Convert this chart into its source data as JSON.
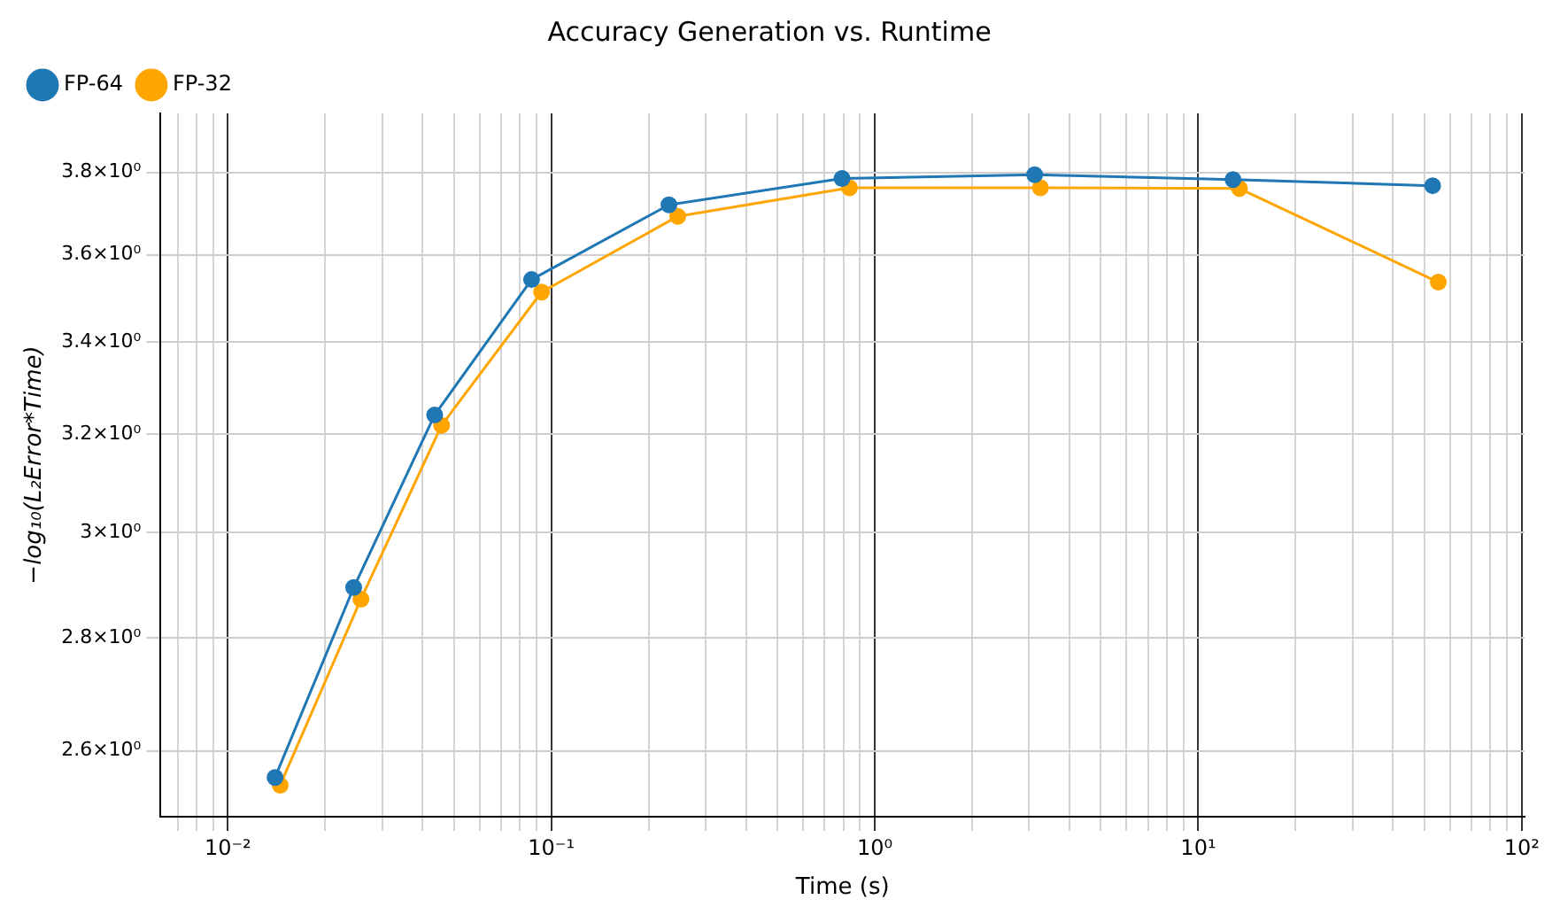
{
  "chart_data": {
    "type": "line",
    "title": "Accuracy Generation vs. Runtime",
    "xlabel": "Time (s)",
    "ylabel": "−log₁₀(L₂Error*Time)",
    "log": "xy",
    "grid": true,
    "legend": "top left",
    "marker": "circle",
    "line_style": "solid",
    "xlim": [
      0.0062,
      102
    ],
    "ylim": [
      2.49,
      3.95
    ],
    "xticks": [
      {
        "value": 0.007,
        "label": null
      },
      {
        "value": 0.008,
        "label": null
      },
      {
        "value": 0.009,
        "label": null
      },
      {
        "value": 0.01,
        "label": "10⁻²"
      },
      {
        "value": 0.02,
        "label": null
      },
      {
        "value": 0.03,
        "label": null
      },
      {
        "value": 0.04,
        "label": null
      },
      {
        "value": 0.05,
        "label": null
      },
      {
        "value": 0.06,
        "label": null
      },
      {
        "value": 0.07,
        "label": null
      },
      {
        "value": 0.08,
        "label": null
      },
      {
        "value": 0.09,
        "label": null
      },
      {
        "value": 0.1,
        "label": "10⁻¹"
      },
      {
        "value": 0.2,
        "label": null
      },
      {
        "value": 0.3,
        "label": null
      },
      {
        "value": 0.4,
        "label": null
      },
      {
        "value": 0.5,
        "label": null
      },
      {
        "value": 0.6,
        "label": null
      },
      {
        "value": 0.7,
        "label": null
      },
      {
        "value": 0.8,
        "label": null
      },
      {
        "value": 0.9,
        "label": null
      },
      {
        "value": 1,
        "label": "10⁰"
      },
      {
        "value": 2,
        "label": null
      },
      {
        "value": 3,
        "label": null
      },
      {
        "value": 4,
        "label": null
      },
      {
        "value": 5,
        "label": null
      },
      {
        "value": 6,
        "label": null
      },
      {
        "value": 7,
        "label": null
      },
      {
        "value": 8,
        "label": null
      },
      {
        "value": 9,
        "label": null
      },
      {
        "value": 10,
        "label": "10¹"
      },
      {
        "value": 20,
        "label": null
      },
      {
        "value": 30,
        "label": null
      },
      {
        "value": 40,
        "label": null
      },
      {
        "value": 50,
        "label": null
      },
      {
        "value": 60,
        "label": null
      },
      {
        "value": 70,
        "label": null
      },
      {
        "value": 80,
        "label": null
      },
      {
        "value": 90,
        "label": null
      },
      {
        "value": 100,
        "label": "10²"
      }
    ],
    "yticks": [
      {
        "value": 2.6,
        "label": "2.6×10⁰"
      },
      {
        "value": 2.8,
        "label": "2.8×10⁰"
      },
      {
        "value": 3,
        "label": "3×10⁰"
      },
      {
        "value": 3.2,
        "label": "3.2×10⁰"
      },
      {
        "value": 3.4,
        "label": "3.4×10⁰"
      },
      {
        "value": 3.6,
        "label": "3.6×10⁰"
      },
      {
        "value": 3.8,
        "label": "3.8×10⁰"
      }
    ],
    "series": [
      {
        "name": "FP-64",
        "color": "#1f77b4",
        "x": [
          0.014,
          0.0245,
          0.0436,
          0.0869,
          0.231,
          0.792,
          3.12,
          12.8,
          53.0
        ],
        "values": [
          2.555,
          2.894,
          3.241,
          3.542,
          3.72,
          3.785,
          3.794,
          3.782,
          3.767
        ]
      },
      {
        "name": "FP-32",
        "color": "#ffa500",
        "x": [
          0.01452,
          0.0258,
          0.0458,
          0.0933,
          0.246,
          0.835,
          3.25,
          13.4,
          55.2
        ],
        "values": [
          2.542,
          2.872,
          3.219,
          3.513,
          3.692,
          3.762,
          3.762,
          3.76,
          3.536
        ]
      }
    ]
  }
}
